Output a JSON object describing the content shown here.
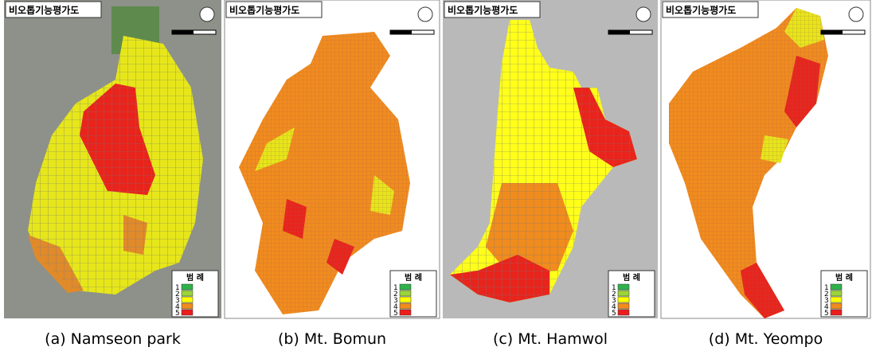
{
  "panels": [
    {
      "title": "비오톱기능평가도",
      "legend_title": "범 례",
      "legend_items": [
        "1",
        "2",
        "3",
        "4",
        "5"
      ],
      "caption": "(a) Namseon park"
    },
    {
      "title": "비오톱기능평가도",
      "legend_title": "범 례",
      "legend_items": [
        "1",
        "2",
        "3",
        "4",
        "5"
      ],
      "caption": "(b) Mt. Bomun"
    },
    {
      "title": "비오톱기능평가도",
      "legend_title": "범 례",
      "legend_items": [
        "1",
        "2",
        "3",
        "4",
        "5"
      ],
      "caption": "(c) Mt. Hamwol"
    },
    {
      "title": "비오톱기능평가도",
      "legend_title": "범 례",
      "legend_items": [
        "1",
        "2",
        "3",
        "4",
        "5"
      ],
      "caption": "(d) Mt. Yeompo"
    }
  ],
  "legend_colors": [
    "#2db34a",
    "#9ad43a",
    "#ffff00",
    "#f08c1e",
    "#ee1c1c"
  ]
}
